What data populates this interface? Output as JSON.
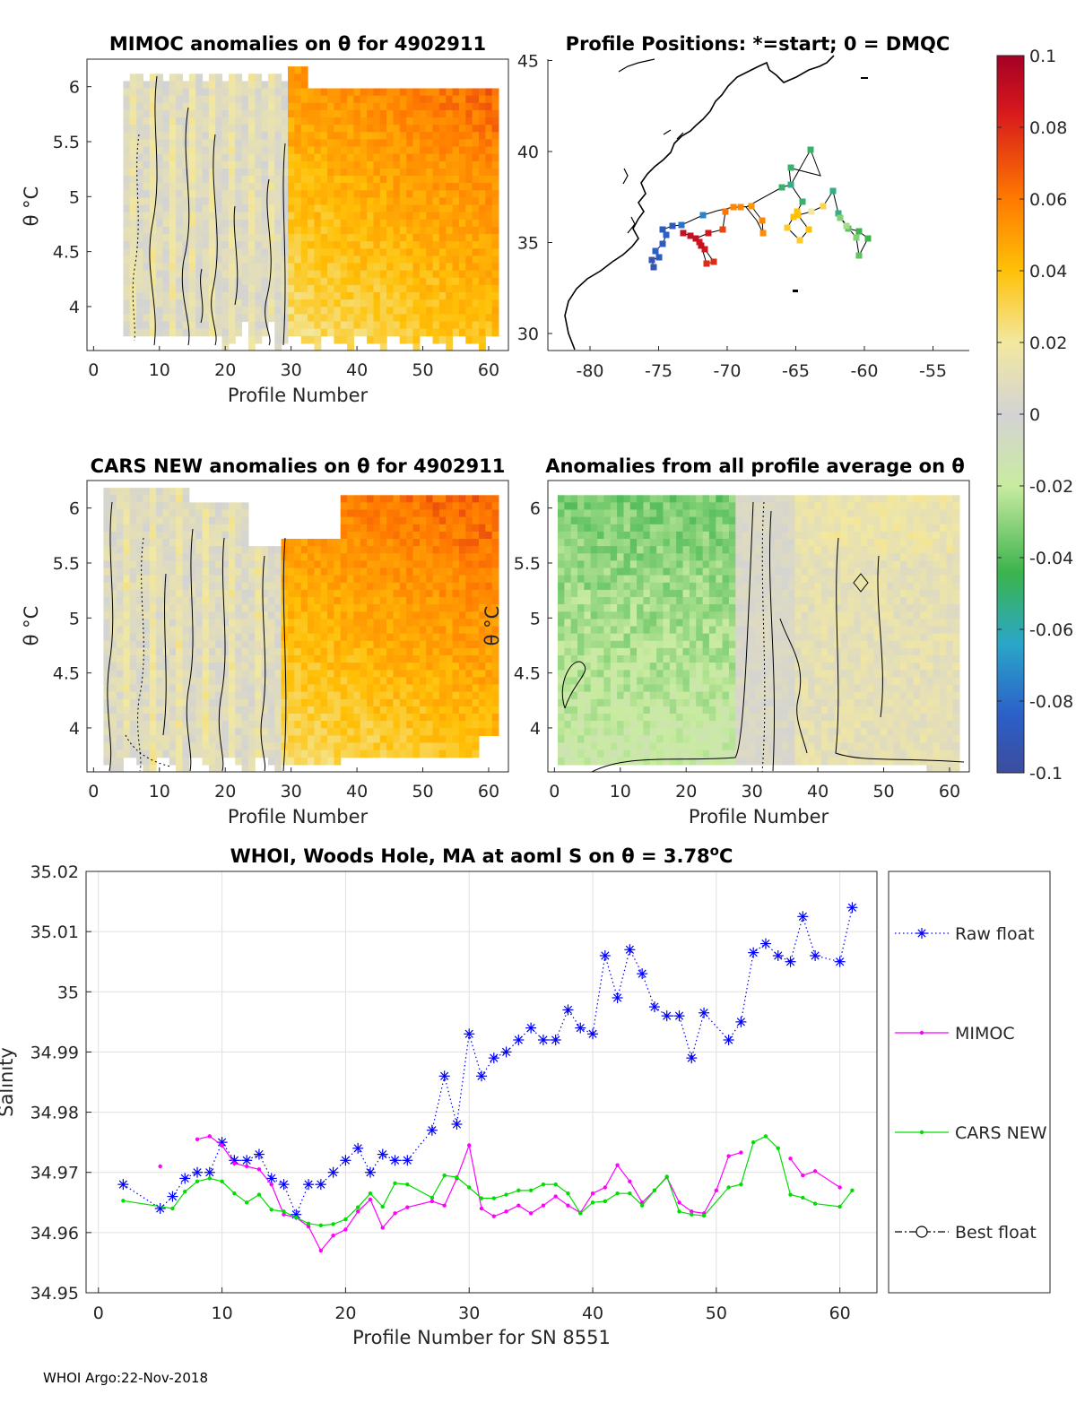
{
  "footer": "WHOI Argo:22-Nov-2018",
  "colors": {
    "raw": "#0000ff",
    "mimoc": "#ff00ff",
    "cars": "#00dd00",
    "best": "#000000",
    "axis": "#262626",
    "grid": "#e0e0e0"
  },
  "panels": {
    "mimoc": {
      "title": "MIMOC anomalies on θ  for 4902911",
      "xlabel": "Profile Number",
      "ylabel": "θ °C",
      "xticks": [
        "0",
        "10",
        "20",
        "30",
        "40",
        "50",
        "60"
      ],
      "yticks": [
        "4",
        "4.5",
        "5",
        "5.5",
        "6"
      ]
    },
    "positions": {
      "title": "Profile Positions: *=start; 0 = DMQC",
      "xticks": [
        "-80",
        "-75",
        "-70",
        "-65",
        "-60",
        "-55"
      ],
      "yticks": [
        "30",
        "35",
        "40",
        "45"
      ]
    },
    "cars": {
      "title": "CARS NEW anomalies on θ for 4902911",
      "xlabel": "Profile Number",
      "ylabel": "θ °C",
      "xticks": [
        "0",
        "10",
        "20",
        "30",
        "40",
        "50",
        "60"
      ],
      "yticks": [
        "4",
        "4.5",
        "5",
        "5.5",
        "6"
      ]
    },
    "avg": {
      "title": "Anomalies from all profile average on θ",
      "xlabel": "Profile Number",
      "ylabel": "θ °C",
      "xticks": [
        "0",
        "10",
        "20",
        "30",
        "40",
        "50",
        "60"
      ],
      "yticks": [
        "4",
        "4.5",
        "5",
        "5.5",
        "6"
      ]
    },
    "colorbar": {
      "ticks": [
        "0.1",
        "0.08",
        "0.06",
        "0.04",
        "0.02",
        "0",
        "-0.02",
        "-0.04",
        "-0.06",
        "-0.08",
        "-0.1"
      ]
    }
  },
  "chart_data": {
    "type": "line",
    "title_main": "WHOI, Woods Hole, MA at aoml S on θ = 3.78",
    "title_sup": "o",
    "title_unit": "C",
    "xlabel": "Profile Number for SN 8551",
    "ylabel": "Salinity",
    "xlim": [
      -1,
      63
    ],
    "ylim": [
      34.95,
      35.02
    ],
    "xticks": [
      "0",
      "10",
      "20",
      "30",
      "40",
      "50",
      "60"
    ],
    "yticks": [
      "34.95",
      "34.96",
      "34.97",
      "34.98",
      "34.99",
      "35",
      "35.01",
      "35.02"
    ],
    "legend_position": "right",
    "series": [
      {
        "name": "Raw float",
        "style": "dotted-asterisk",
        "x": [
          2,
          5,
          6,
          7,
          8,
          9,
          10,
          11,
          12,
          13,
          14,
          15,
          16,
          17,
          18,
          19,
          20,
          21,
          22,
          23,
          24,
          25,
          27,
          28,
          29,
          30,
          31,
          32,
          33,
          34,
          35,
          36,
          37,
          38,
          39,
          40,
          41,
          42,
          43,
          44,
          45,
          46,
          47,
          48,
          49,
          51,
          52,
          53,
          54,
          55,
          56,
          57,
          58,
          60,
          61
        ],
        "values": [
          34.968,
          34.964,
          34.966,
          34.969,
          34.97,
          34.97,
          34.975,
          34.972,
          34.972,
          34.973,
          34.969,
          34.968,
          34.963,
          34.968,
          34.968,
          34.97,
          34.972,
          34.974,
          34.97,
          34.973,
          34.972,
          34.972,
          34.977,
          34.986,
          34.978,
          34.993,
          34.986,
          34.989,
          34.99,
          34.992,
          34.994,
          34.992,
          34.992,
          34.997,
          34.994,
          34.993,
          35.006,
          34.999,
          35.007,
          35.003,
          34.9975,
          34.996,
          34.996,
          34.989,
          34.9965,
          34.992,
          34.995,
          35.0065,
          35.008,
          35.006,
          35.005,
          35.0125,
          35.006,
          35.005,
          35.014
        ]
      },
      {
        "name": "MIMOC",
        "style": "solid-dot",
        "x": [
          5,
          null,
          8,
          9,
          10,
          11,
          12,
          13,
          14,
          15,
          16,
          17,
          18,
          19,
          20,
          21,
          22,
          23,
          24,
          25,
          27,
          28,
          29,
          30,
          31,
          32,
          33,
          34,
          35,
          36,
          37,
          38,
          39,
          40,
          41,
          42,
          43,
          44,
          45,
          46,
          47,
          48,
          49,
          50,
          51,
          52,
          null,
          56,
          57,
          58,
          60
        ],
        "values": [
          34.971,
          null,
          34.9755,
          34.976,
          34.9745,
          34.9715,
          34.971,
          34.9705,
          34.968,
          34.963,
          34.9625,
          34.961,
          34.957,
          34.9595,
          34.9605,
          34.9635,
          34.9655,
          34.9608,
          34.9632,
          34.9642,
          34.9652,
          34.9645,
          34.969,
          34.9745,
          34.964,
          34.9627,
          34.9635,
          34.9645,
          34.9632,
          34.9645,
          34.966,
          34.9645,
          34.9633,
          34.9665,
          34.9675,
          34.9712,
          34.9685,
          34.965,
          34.967,
          34.9692,
          34.965,
          34.9635,
          34.9632,
          34.967,
          34.9727,
          34.9733,
          null,
          34.9723,
          34.9695,
          34.9702,
          34.9675
        ]
      },
      {
        "name": "CARS NEW",
        "style": "solid-dot",
        "x": [
          2,
          6,
          7,
          8,
          9,
          10,
          11,
          12,
          13,
          14,
          15,
          16,
          17,
          18,
          19,
          20,
          21,
          22,
          23,
          24,
          25,
          27,
          28,
          29,
          30,
          31,
          32,
          33,
          34,
          35,
          36,
          37,
          38,
          39,
          40,
          41,
          42,
          43,
          44,
          45,
          46,
          47,
          48,
          49,
          51,
          52,
          53,
          54,
          55,
          56,
          57,
          58,
          60,
          61
        ],
        "values": [
          34.9653,
          34.964,
          34.9668,
          34.9685,
          34.969,
          34.9685,
          34.9665,
          34.965,
          34.9663,
          34.9638,
          34.9635,
          34.9625,
          34.9615,
          34.9612,
          34.9614,
          34.9622,
          34.9642,
          34.9665,
          34.9643,
          34.9682,
          34.968,
          34.9658,
          34.9695,
          34.9692,
          34.9675,
          34.9657,
          34.9657,
          34.9663,
          34.967,
          34.967,
          34.968,
          34.968,
          34.9665,
          34.9632,
          34.965,
          34.9652,
          34.9665,
          34.9665,
          34.9645,
          34.967,
          34.9693,
          34.9635,
          34.963,
          34.9628,
          34.9675,
          34.968,
          34.975,
          34.976,
          34.974,
          34.9663,
          34.9658,
          34.9648,
          34.9643,
          34.967
        ]
      },
      {
        "name": "Best float",
        "style": "dashdot-circle",
        "x": [],
        "values": []
      }
    ]
  }
}
